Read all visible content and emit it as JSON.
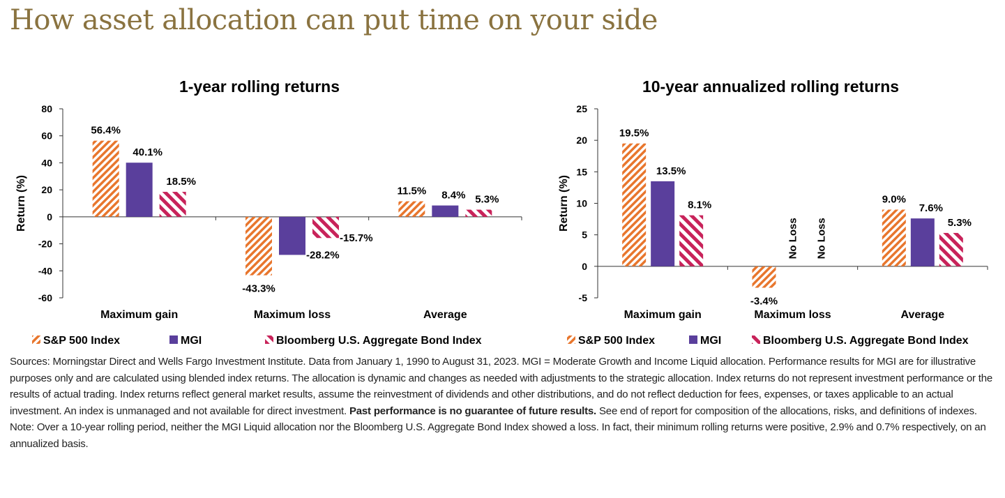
{
  "title": "How asset allocation can put time on your side",
  "colors": {
    "sp500": "#e8762d",
    "mgi": "#5a3f9c",
    "bond": "#c8235a",
    "title": "#8a7340"
  },
  "chart_data": [
    {
      "type": "bar",
      "title": "1-year rolling returns",
      "ylabel": "Return (%)",
      "ylim": [
        -60,
        80
      ],
      "yticks": [
        80,
        60,
        40,
        20,
        0,
        -20,
        -40,
        -60
      ],
      "categories": [
        "Maximum gain",
        "Maximum loss",
        "Average"
      ],
      "series": [
        {
          "name": "S&P 500 Index",
          "values": [
            56.4,
            -43.3,
            11.5
          ],
          "labels": [
            "56.4%",
            "-43.3%",
            "11.5%"
          ],
          "pattern": "diagonal-up-stripes"
        },
        {
          "name": "MGI",
          "values": [
            40.1,
            -28.2,
            8.4
          ],
          "labels": [
            "40.1%",
            "-28.2%",
            "8.4%"
          ],
          "pattern": "solid"
        },
        {
          "name": "Bloomberg U.S. Aggregate Bond Index",
          "values": [
            18.5,
            -15.7,
            5.3
          ],
          "labels": [
            "18.5%",
            "-15.7%",
            "5.3%"
          ],
          "pattern": "diagonal-down-stripes"
        }
      ],
      "legend": "bottom"
    },
    {
      "type": "bar",
      "title": "10-year annualized rolling returns",
      "ylabel": "Return (%)",
      "ylim": [
        -5,
        25
      ],
      "yticks": [
        25,
        20,
        15,
        10,
        5,
        0,
        -5
      ],
      "categories": [
        "Maximum gain",
        "Maximum loss",
        "Average"
      ],
      "series": [
        {
          "name": "S&P 500 Index",
          "values": [
            19.5,
            -3.4,
            9.0
          ],
          "labels": [
            "19.5%",
            "-3.4%",
            "9.0%"
          ],
          "pattern": "diagonal-up-stripes"
        },
        {
          "name": "MGI",
          "values": [
            13.5,
            null,
            7.6
          ],
          "labels": [
            "13.5%",
            "No Loss",
            "7.6%"
          ],
          "pattern": "solid"
        },
        {
          "name": "Bloomberg U.S. Aggregate Bond Index",
          "values": [
            8.1,
            null,
            5.3
          ],
          "labels": [
            "8.1%",
            "No Loss",
            "5.3%"
          ],
          "pattern": "diagonal-down-stripes"
        }
      ],
      "legend": "bottom"
    }
  ],
  "notes": {
    "sources_a": "Sources: Morningstar Direct and Wells Fargo Investment Institute. Data from January 1, 1990 to August 31, 2023. MGI = Moderate Growth and Income Liquid allocation. Performance results for MGI are for illustrative purposes only and are calculated using blended index returns. The allocation is dynamic and changes as needed with adjustments to the strategic allocation. Index returns do not represent investment performance or the results of actual trading. Index returns reflect general market results, assume the reinvestment of dividends and other distributions, and do not reflect deduction for fees, expenses, or taxes applicable to an actual investment. An index is unmanaged and not available for direct investment. ",
    "sources_bold": "Past performance is no guarantee of future results.",
    "sources_b": " See end of report for composition of the allocations, risks, and definitions of indexes.",
    "note": "Note: Over a 10-year rolling period, neither the MGI Liquid allocation nor the Bloomberg U.S. Aggregate Bond Index showed a loss. In fact, their minimum rolling returns were positive, 2.9% and 0.7% respectively, on an annualized basis."
  }
}
